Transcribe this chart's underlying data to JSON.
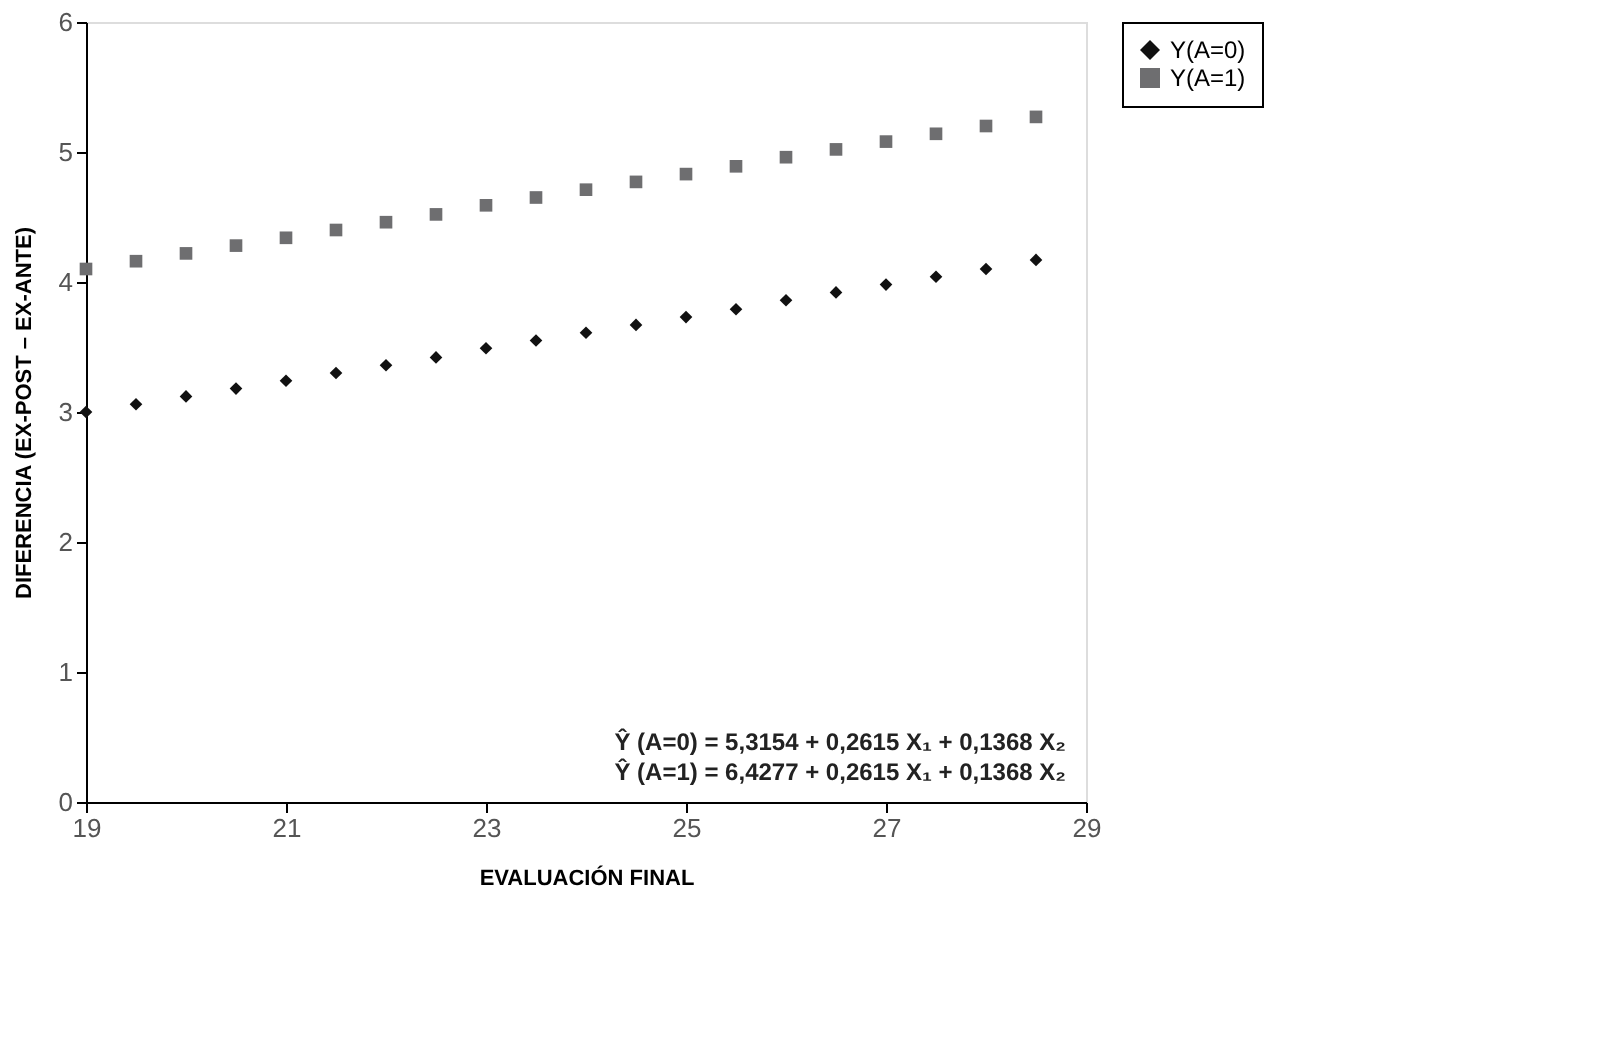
{
  "chart_data": {
    "type": "scatter",
    "xlabel": "EVALUACIÓN FINAL",
    "ylabel": "DIFERENCIA (EX-POST – EX-ANTE)",
    "x": [
      19,
      19.5,
      20,
      20.5,
      21,
      21.5,
      22,
      22.5,
      23,
      23.5,
      24,
      24.5,
      25,
      25.5,
      26,
      26.5,
      27,
      27.5,
      28,
      28.5
    ],
    "series": [
      {
        "name": "Y(A=0)",
        "color": "#111111",
        "marker": "diamond",
        "values": [
          3.0,
          3.06,
          3.12,
          3.18,
          3.24,
          3.3,
          3.36,
          3.42,
          3.49,
          3.55,
          3.61,
          3.67,
          3.73,
          3.79,
          3.86,
          3.92,
          3.98,
          4.04,
          4.1,
          4.17
        ]
      },
      {
        "name": "Y(A=1)",
        "color": "#6e6e70",
        "marker": "square",
        "values": [
          4.1,
          4.16,
          4.22,
          4.28,
          4.34,
          4.4,
          4.46,
          4.52,
          4.59,
          4.65,
          4.71,
          4.77,
          4.83,
          4.89,
          4.96,
          5.02,
          5.08,
          5.14,
          5.2,
          5.27
        ]
      }
    ],
    "xlim": [
      19,
      29
    ],
    "xticks": [
      19,
      21,
      23,
      25,
      27,
      29
    ],
    "ylim": [
      0,
      6
    ],
    "yticks": [
      0,
      1,
      2,
      3,
      4,
      5,
      6
    ],
    "grid": false,
    "legend": "right",
    "annotations": [
      "Ŷ (A=0) = 5,3154 + 0,2615 X₁ + 0,1368 X₂",
      "Ŷ (A=1) = 6,4277 + 0,2615 X₁ + 0,1368 X₂"
    ]
  }
}
